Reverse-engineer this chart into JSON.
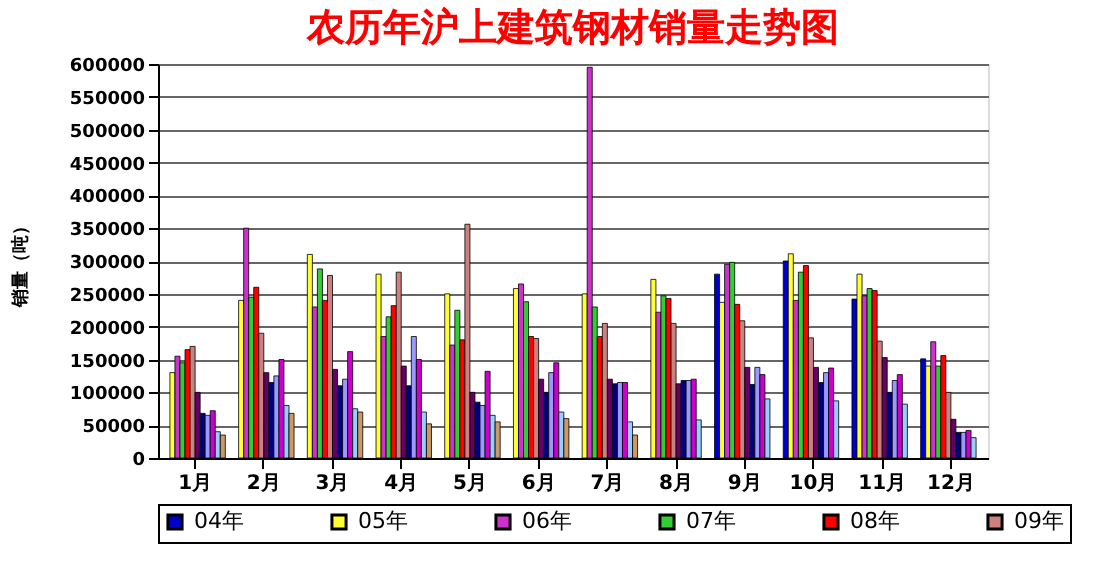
{
  "chart_data": {
    "type": "bar",
    "title": "农历年沪上建筑钢材销量走势图",
    "ylabel": "销量（吨）",
    "categories": [
      "1月",
      "2月",
      "3月",
      "4月",
      "5月",
      "6月",
      "7月",
      "8月",
      "9月",
      "10月",
      "11月",
      "12月"
    ],
    "series": [
      {
        "name": "04年",
        "color": "#0000cc",
        "values": [
          null,
          null,
          null,
          null,
          null,
          null,
          null,
          null,
          280000,
          300000,
          242000,
          151000
        ]
      },
      {
        "name": "05年",
        "color": "#ffff33",
        "values": [
          130000,
          240000,
          310000,
          280000,
          250000,
          258000,
          250000,
          272000,
          237000,
          311000,
          280000,
          140000
        ]
      },
      {
        "name": "06年",
        "color": "#cc33cc",
        "values": [
          155000,
          350000,
          230000,
          185000,
          172000,
          265000,
          595000,
          222000,
          295000,
          240000,
          247000,
          177000
        ]
      },
      {
        "name": "07年",
        "color": "#33cc33",
        "values": [
          145000,
          245000,
          288000,
          215000,
          225000,
          238000,
          230000,
          247000,
          298000,
          283000,
          258000,
          140000
        ]
      },
      {
        "name": "08年",
        "color": "#ff0000",
        "values": [
          165000,
          260000,
          240000,
          232000,
          180000,
          185000,
          185000,
          243000,
          234000,
          293000,
          255000,
          156000
        ]
      },
      {
        "name": "09年",
        "color": "#cc8080",
        "values": [
          170000,
          190000,
          278000,
          283000,
          356000,
          182000,
          205000,
          205000,
          209000,
          183000,
          178000,
          100000
        ]
      },
      {
        "color": "#660066",
        "values": [
          100000,
          130000,
          135000,
          140000,
          100000,
          120000,
          120000,
          113000,
          138000,
          138000,
          153000,
          59000
        ]
      },
      {
        "color": "#000080",
        "values": [
          68000,
          115000,
          110000,
          110000,
          85000,
          100000,
          113000,
          118000,
          112000,
          115000,
          100000,
          39000
        ]
      },
      {
        "color": "#9999ff",
        "values": [
          65000,
          125000,
          120000,
          185000,
          80000,
          130000,
          115000,
          118000,
          138000,
          130000,
          118000,
          39000
        ]
      },
      {
        "color": "#cc00cc",
        "values": [
          72000,
          150000,
          162000,
          150000,
          132000,
          145000,
          115000,
          120000,
          127000,
          137000,
          127000,
          42000
        ]
      },
      {
        "color": "#99ccff",
        "values": [
          40000,
          80000,
          75000,
          70000,
          65000,
          70000,
          55000,
          58000,
          90000,
          87000,
          82000,
          31000
        ]
      },
      {
        "color": "#cc9966",
        "values": [
          35000,
          68000,
          70000,
          52000,
          55000,
          60000,
          35000,
          null,
          null,
          null,
          null,
          null
        ]
      }
    ],
    "ylim": [
      0,
      600000
    ],
    "yticks": [
      0,
      50000,
      100000,
      150000,
      200000,
      250000,
      300000,
      350000,
      400000,
      450000,
      500000,
      550000,
      600000
    ],
    "grid": "y",
    "legend": "bottom"
  }
}
